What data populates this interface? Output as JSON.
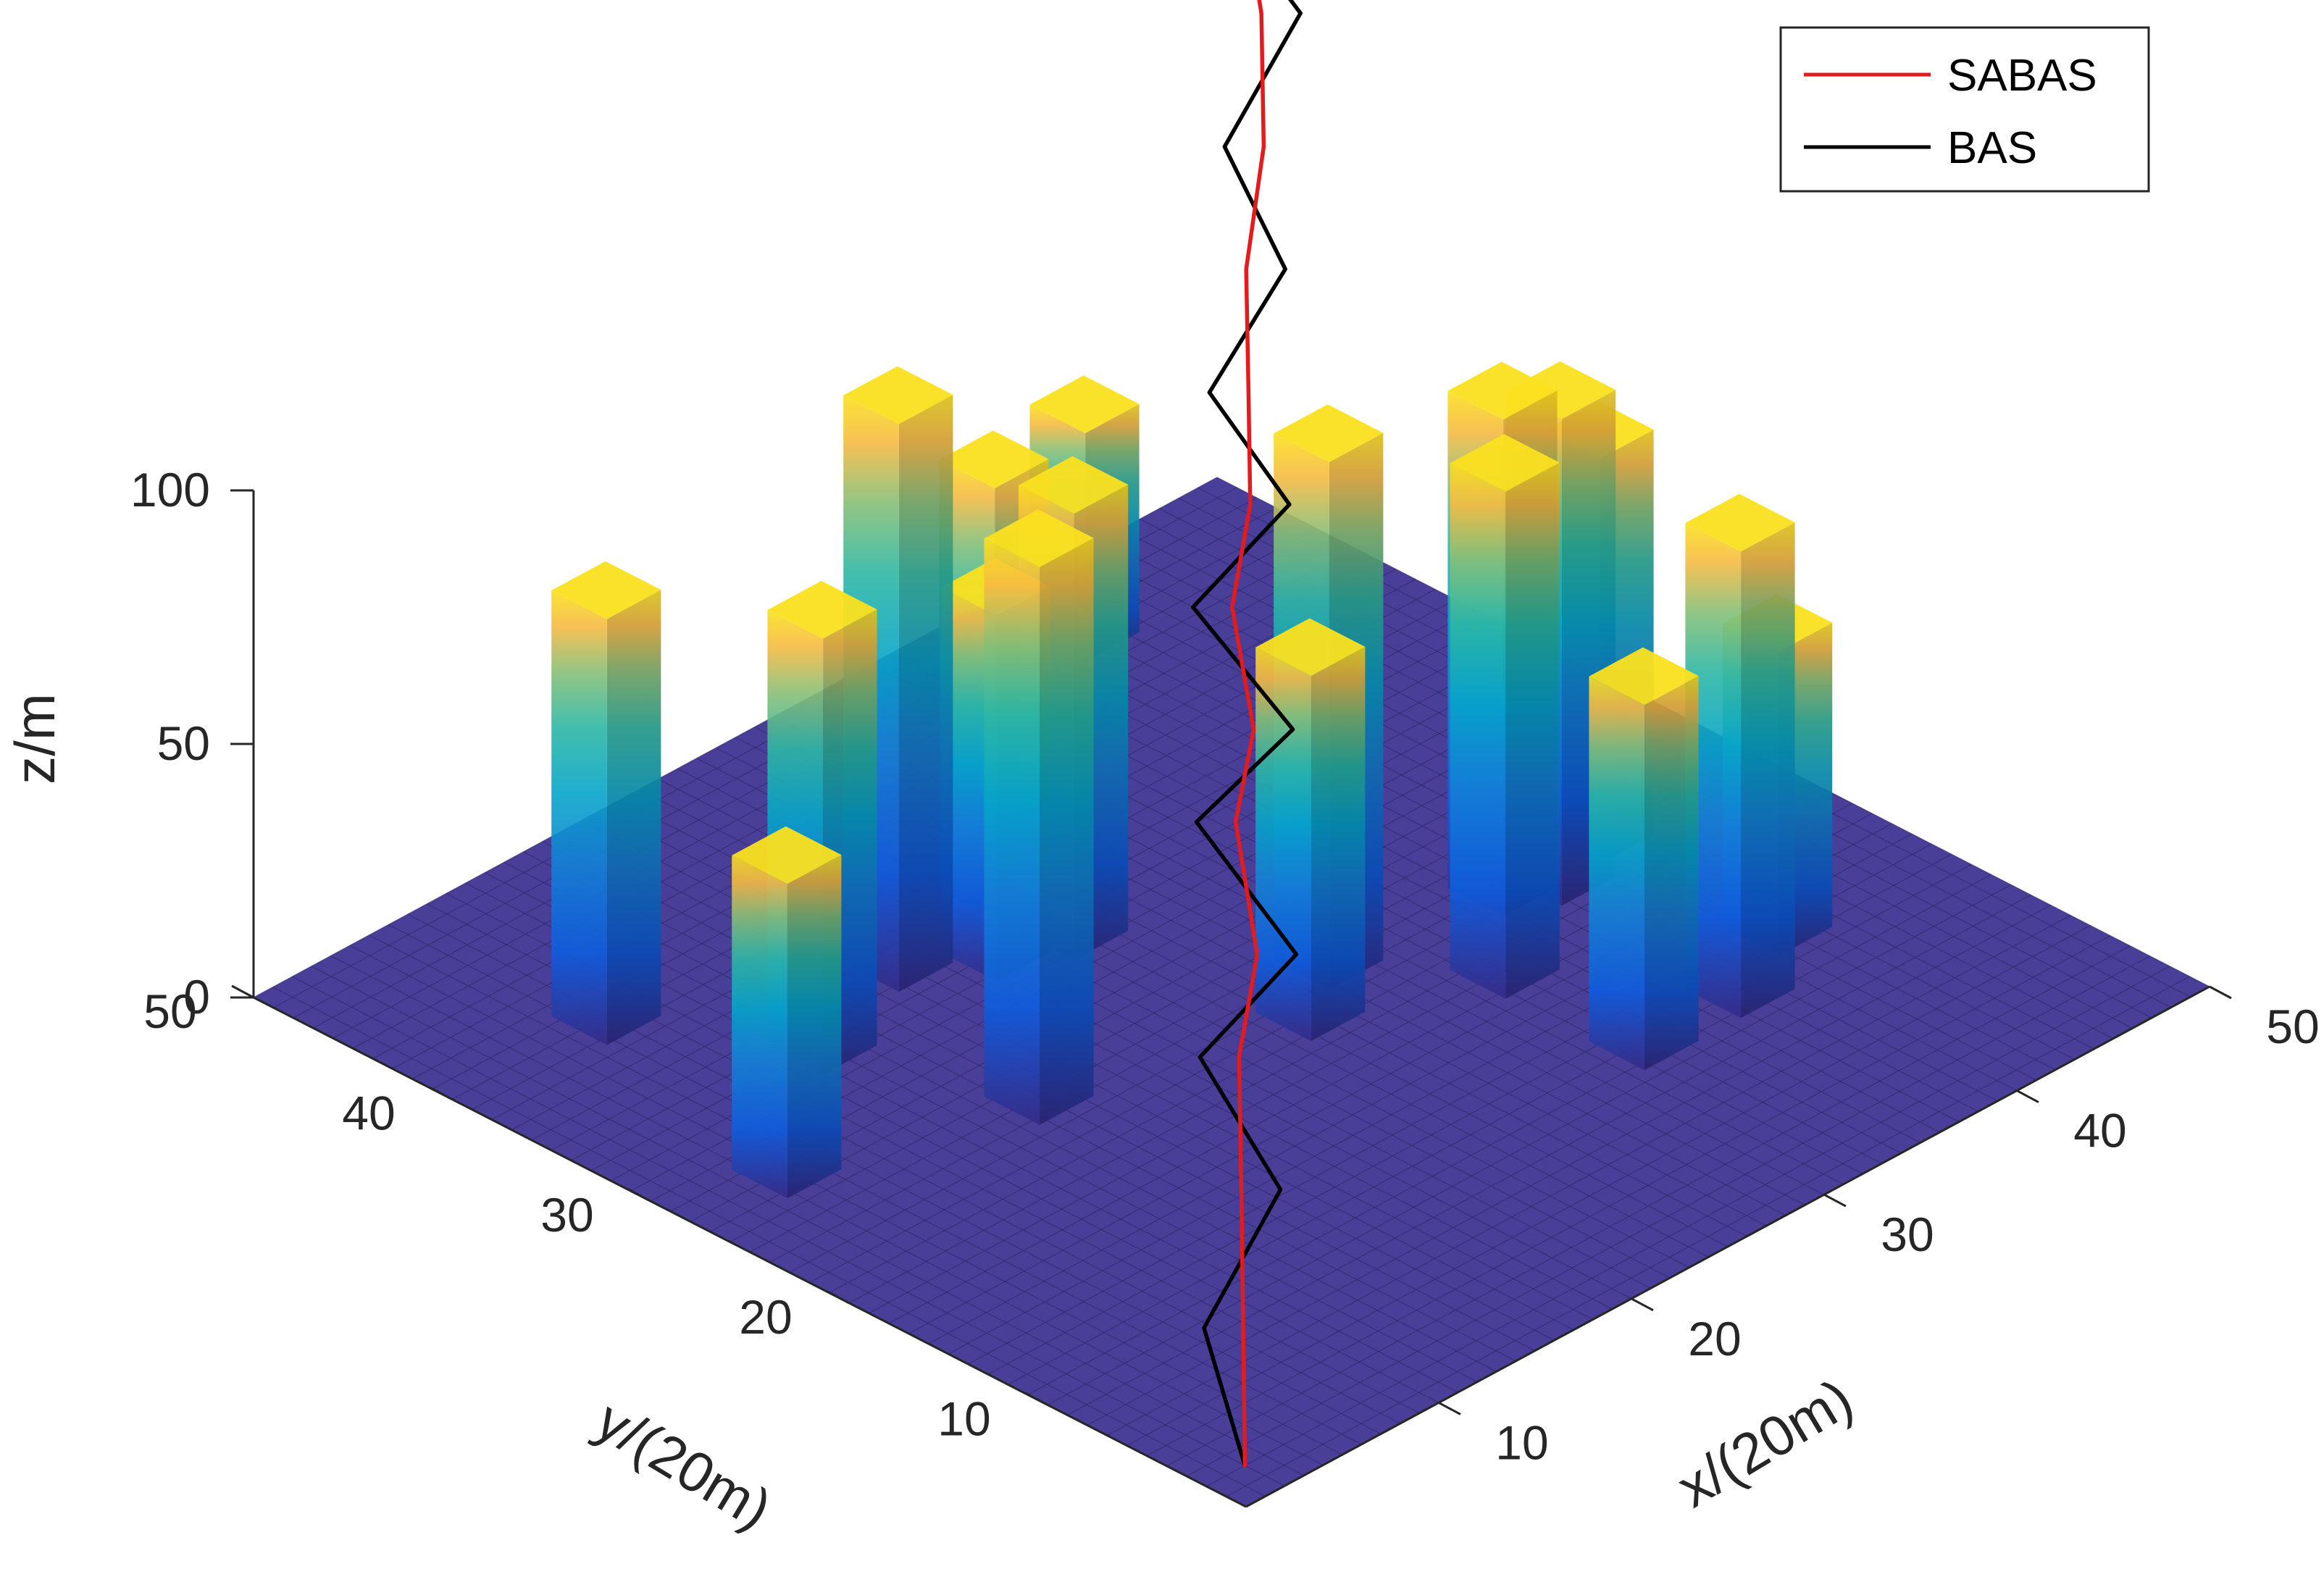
{
  "chart_data": {
    "type": "3d-surface-with-lines",
    "xlabel": "x/(20m)",
    "ylabel": "y/(20m)",
    "zlabel": "z/m",
    "xlim": [
      0,
      50
    ],
    "ylim": [
      0,
      50
    ],
    "zlim": [
      0,
      100
    ],
    "x_ticks": [
      10,
      20,
      30,
      40,
      50
    ],
    "y_ticks": [
      10,
      20,
      30,
      40,
      50
    ],
    "z_ticks": [
      0,
      50,
      100
    ],
    "grid": false,
    "legend_position": "top-right",
    "terrain_color": "#493f99",
    "obstacles": [
      {
        "x": 5,
        "y": 28,
        "height": 62
      },
      {
        "x": 8,
        "y": 40,
        "height": 84
      },
      {
        "x": 12,
        "y": 33,
        "height": 86
      },
      {
        "x": 15,
        "y": 25,
        "height": 110
      },
      {
        "x": 18,
        "y": 35,
        "height": 112
      },
      {
        "x": 21,
        "y": 33,
        "height": 72
      },
      {
        "x": 24,
        "y": 36,
        "height": 85
      },
      {
        "x": 24,
        "y": 32,
        "height": 88
      },
      {
        "x": 26,
        "y": 22,
        "height": 72
      },
      {
        "x": 29,
        "y": 24,
        "height": 104
      },
      {
        "x": 33,
        "y": 19,
        "height": 100
      },
      {
        "x": 37,
        "y": 23,
        "height": 98
      },
      {
        "x": 39,
        "y": 22,
        "height": 96
      },
      {
        "x": 42,
        "y": 23,
        "height": 80
      },
      {
        "x": 42,
        "y": 14,
        "height": 60
      },
      {
        "x": 38,
        "y": 12,
        "height": 92
      },
      {
        "x": 33,
        "y": 12,
        "height": 72
      },
      {
        "x": 39,
        "y": 46,
        "height": 45
      }
    ],
    "series": [
      {
        "name": "SABAS",
        "color": "#e41a1c",
        "points": [
          [
            2,
            2,
            0
          ],
          [
            5,
            5,
            15
          ],
          [
            8,
            8,
            30
          ],
          [
            12,
            12,
            40
          ],
          [
            15,
            14,
            50
          ],
          [
            18,
            18,
            62
          ],
          [
            21,
            20,
            70
          ],
          [
            24,
            24,
            80
          ],
          [
            27,
            26,
            90
          ],
          [
            30,
            29,
            100
          ],
          [
            34,
            33,
            108
          ],
          [
            38,
            36,
            118
          ],
          [
            42,
            40,
            128
          ],
          [
            45,
            44,
            140
          ],
          [
            48,
            48,
            300
          ]
        ]
      },
      {
        "name": "BAS",
        "color": "#000000",
        "points": [
          [
            2,
            2,
            0
          ],
          [
            4,
            6,
            15
          ],
          [
            9,
            7,
            30
          ],
          [
            11,
            13,
            40
          ],
          [
            16,
            13,
            50
          ],
          [
            17,
            19,
            62
          ],
          [
            22,
            19,
            70
          ],
          [
            23,
            25,
            80
          ],
          [
            28,
            25,
            90
          ],
          [
            29,
            30,
            100
          ],
          [
            35,
            32,
            108
          ],
          [
            37,
            37,
            118
          ],
          [
            43,
            39,
            128
          ],
          [
            44,
            45,
            140
          ]
        ]
      }
    ]
  }
}
